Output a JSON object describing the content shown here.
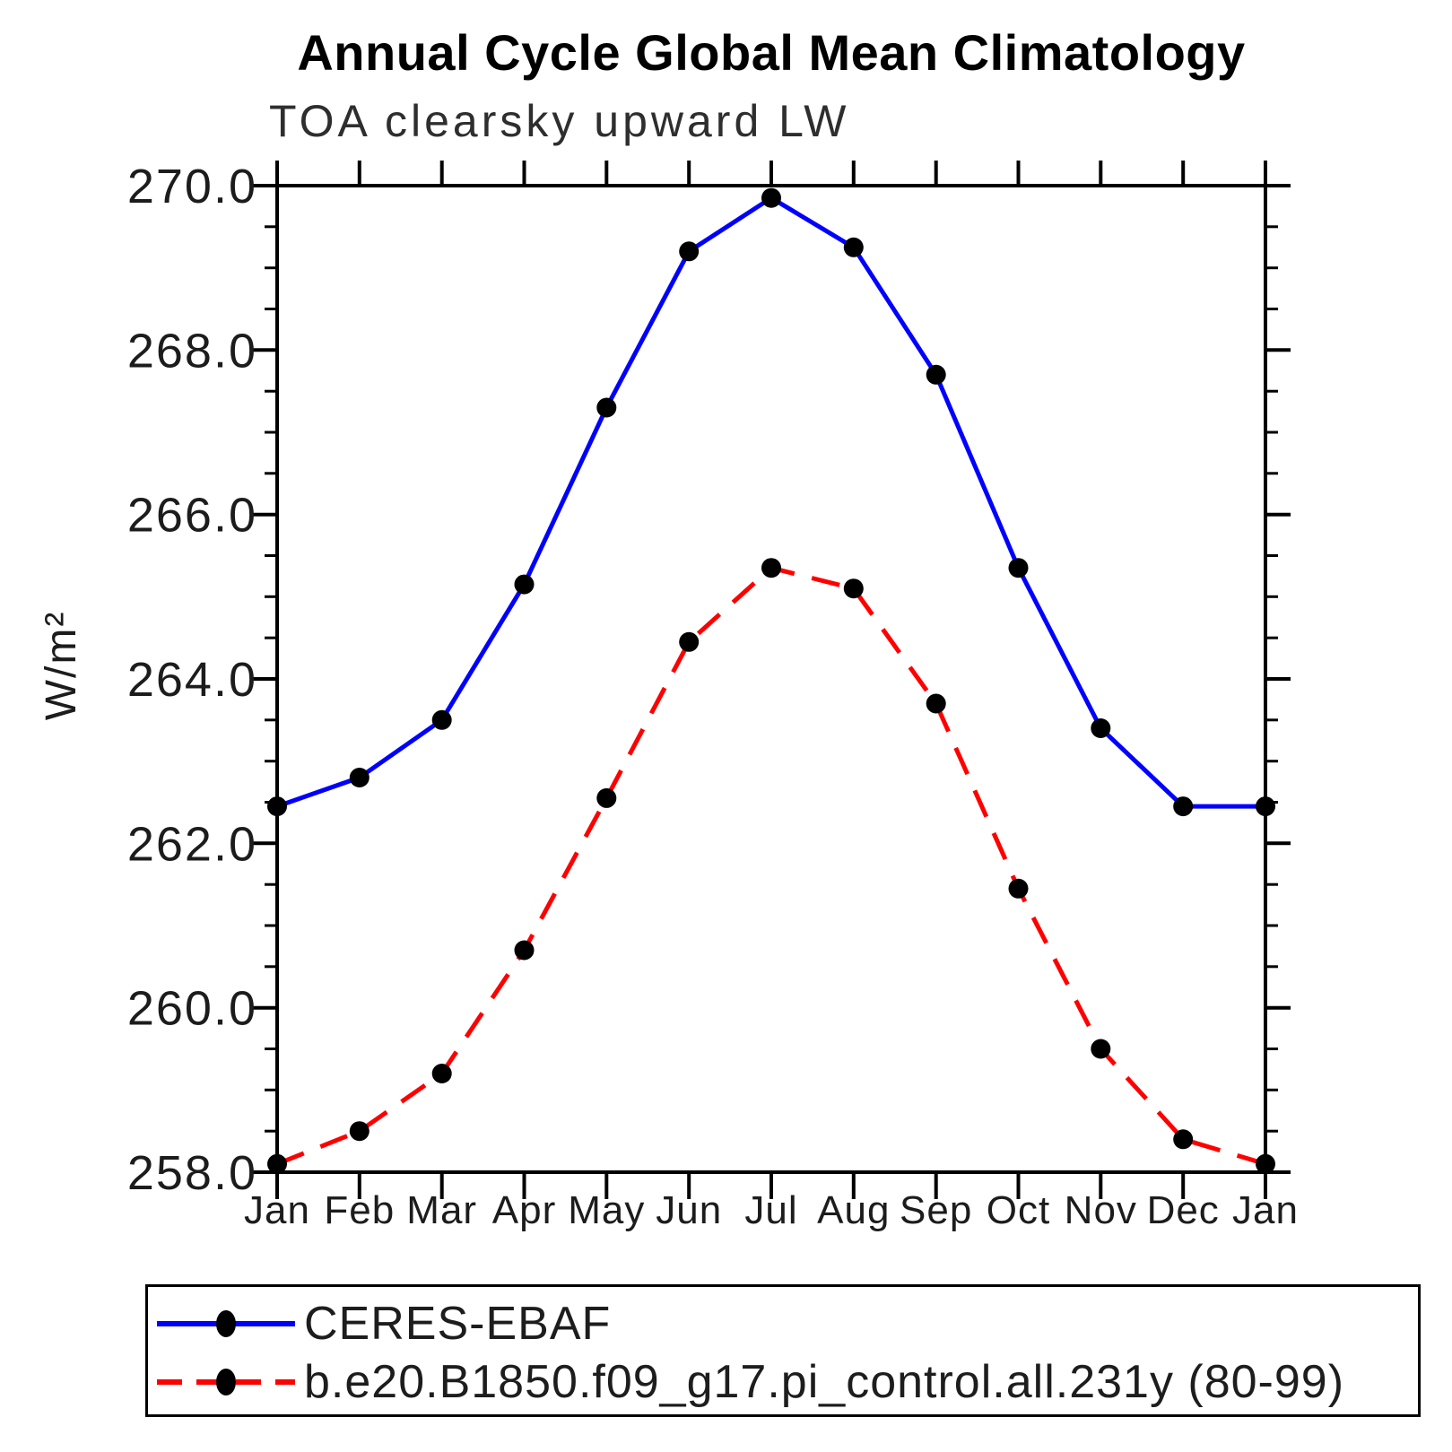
{
  "chart_data": {
    "type": "line",
    "title": "Annual Cycle Global Mean Climatology",
    "subtitle": "TOA clearsky upward LW",
    "xlabel": "",
    "ylabel": "W/m²",
    "ylim": [
      258.0,
      270.0
    ],
    "ytick_major_step": 2.0,
    "ytick_minor_step": 0.5,
    "ytick_labels": [
      "270.0",
      "268.0",
      "266.0",
      "264.0",
      "262.0",
      "260.0",
      "258.0"
    ],
    "grid": false,
    "legend_position": "bottom-left-box",
    "categories": [
      "Jan",
      "Feb",
      "Mar",
      "Apr",
      "May",
      "Jun",
      "Jul",
      "Aug",
      "Sep",
      "Oct",
      "Nov",
      "Dec",
      "Jan"
    ],
    "series": [
      {
        "name": "CERES-EBAF",
        "color": "#0000ff",
        "line_style": "solid",
        "marker": "filled-circle",
        "marker_color": "#000000",
        "values": [
          262.45,
          262.8,
          263.5,
          265.15,
          267.3,
          269.2,
          269.85,
          269.25,
          267.7,
          265.35,
          263.4,
          262.45,
          262.45
        ]
      },
      {
        "name": "b.e20.B1850.f09_g17.pi_control.all.231y (80-99)",
        "color": "#ff0000",
        "line_style": "dashed",
        "marker": "filled-circle",
        "marker_color": "#000000",
        "values": [
          258.1,
          258.5,
          259.2,
          260.7,
          262.55,
          264.45,
          265.35,
          265.1,
          263.7,
          261.45,
          259.5,
          258.4,
          258.1
        ]
      }
    ],
    "axis_color": "#000000",
    "text_color": "#1c1c1c"
  }
}
